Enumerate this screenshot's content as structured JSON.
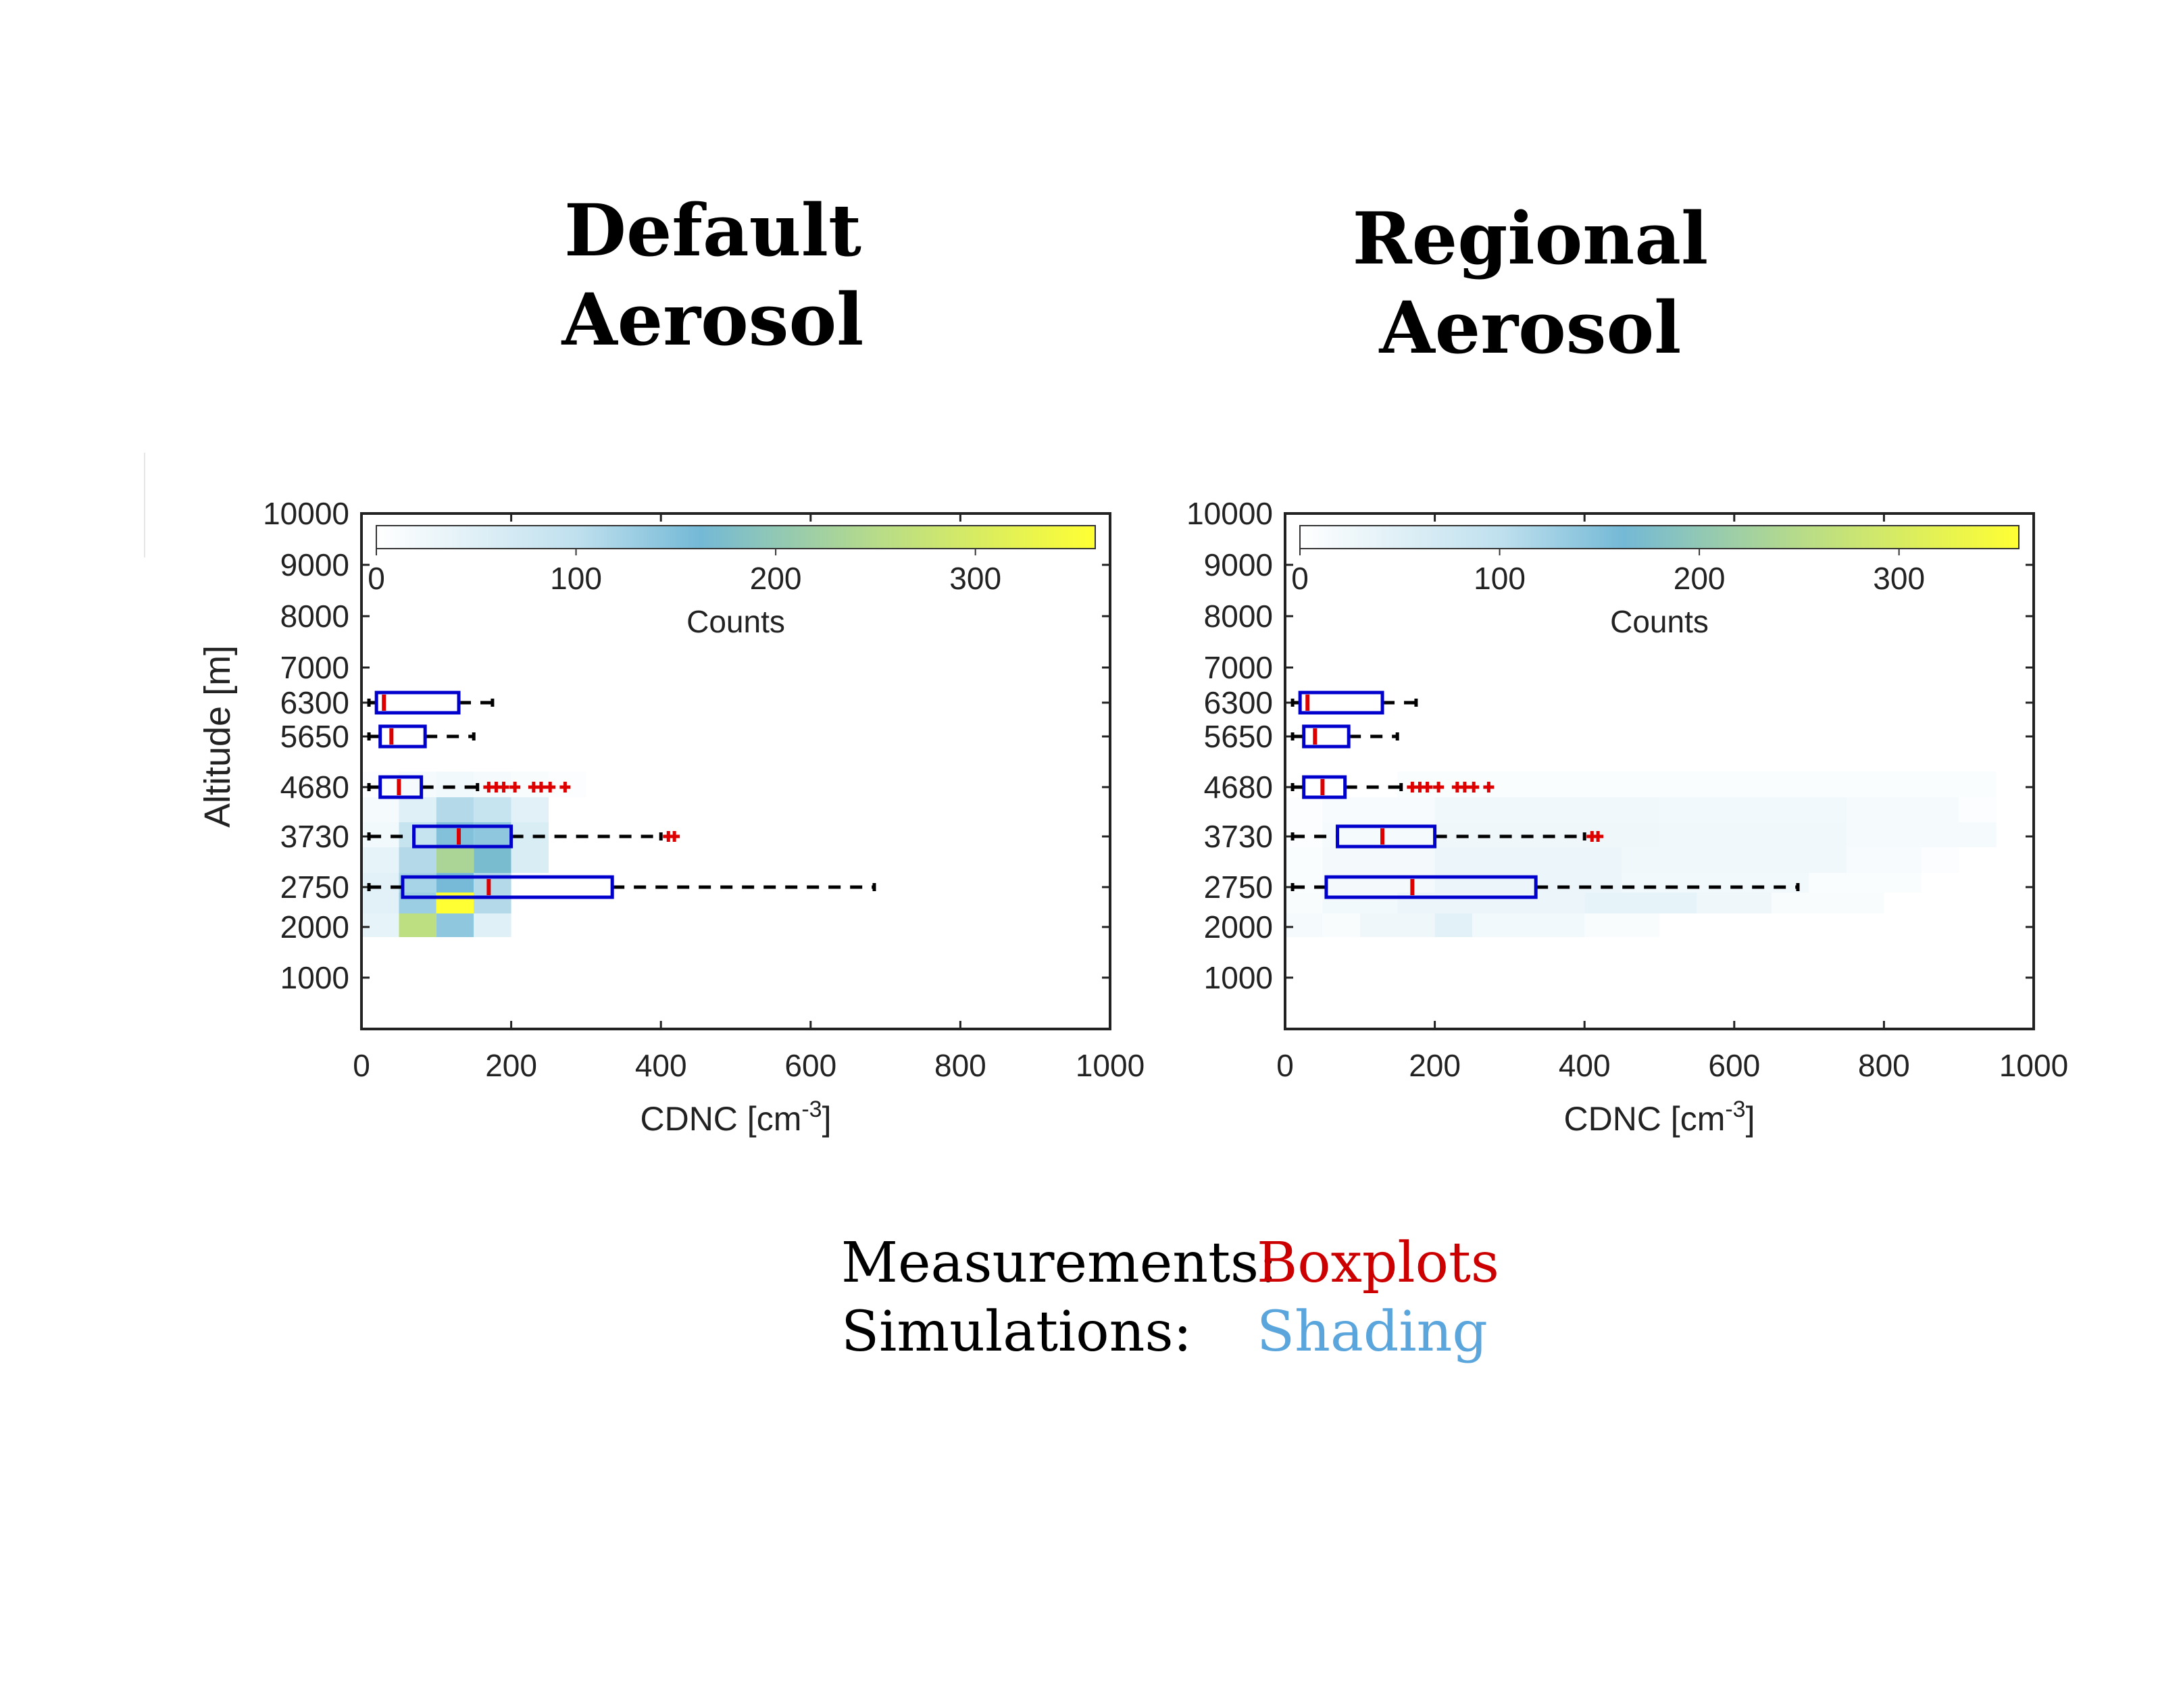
{
  "titles": {
    "left": "Default\nAerosol",
    "right": "Regional\nAerosol"
  },
  "legend_note": {
    "measurements_label": "Measurements:",
    "measurements_value": "Boxplots",
    "measurements_color": "#cc0000",
    "simulations_label": "Simulations:",
    "simulations_value": "Shading",
    "simulations_color": "#5aa5dc"
  },
  "colors": {
    "box": "#0000cc",
    "median": "#dd0000",
    "outlier": "#dd0000",
    "whisker": "#000000",
    "colormap": [
      "#ffffff",
      "#bfe0ee",
      "#74b9d6",
      "#b8dc88",
      "#ffff33"
    ]
  },
  "chart_data": [
    {
      "type": "heatmap",
      "panel": "Default Aerosol",
      "xlabel": "CDNC [cm",
      "xlabel_sup": "-3",
      "xlabel_end": "]",
      "ylabel": "Altitude [m]",
      "xlim": [
        0,
        1000
      ],
      "xticks": [
        "0",
        "200",
        "400",
        "600",
        "800",
        "1000"
      ],
      "yticks": [
        "10000",
        "9000",
        "8000",
        "7000",
        "6300",
        "5650",
        "4680",
        "3730",
        "2750",
        "2000",
        "1000"
      ],
      "colorbar": {
        "label": "Counts",
        "ticks": [
          "0",
          "100",
          "200",
          "300"
        ],
        "max": 360
      },
      "heatmap_cells": [
        {
          "x0": 0,
          "x1": 50,
          "y": "4680",
          "count": 5
        },
        {
          "x0": 50,
          "x1": 100,
          "y": "4680",
          "count": 15
        },
        {
          "x0": 100,
          "x1": 150,
          "y": "4680",
          "count": 20
        },
        {
          "x0": 150,
          "x1": 200,
          "y": "4680",
          "count": 15
        },
        {
          "x0": 200,
          "x1": 250,
          "y": "4680",
          "count": 10
        },
        {
          "x0": 250,
          "x1": 300,
          "y": "4680",
          "count": 5
        },
        {
          "x0": 0,
          "x1": 50,
          "y": "4200",
          "count": 15
        },
        {
          "x0": 50,
          "x1": 100,
          "y": "4200",
          "count": 50
        },
        {
          "x0": 100,
          "x1": 150,
          "y": "4200",
          "count": 110
        },
        {
          "x0": 150,
          "x1": 200,
          "y": "4200",
          "count": 90
        },
        {
          "x0": 200,
          "x1": 250,
          "y": "4200",
          "count": 45
        },
        {
          "x0": 0,
          "x1": 50,
          "y": "3730",
          "count": 20
        },
        {
          "x0": 50,
          "x1": 100,
          "y": "3730",
          "count": 90
        },
        {
          "x0": 100,
          "x1": 150,
          "y": "3730",
          "count": 150
        },
        {
          "x0": 150,
          "x1": 200,
          "y": "3730",
          "count": 140
        },
        {
          "x0": 200,
          "x1": 250,
          "y": "3730",
          "count": 60
        },
        {
          "x0": 0,
          "x1": 50,
          "y": "3240",
          "count": 40
        },
        {
          "x0": 50,
          "x1": 100,
          "y": "3240",
          "count": 110
        },
        {
          "x0": 100,
          "x1": 150,
          "y": "3240",
          "count": 235
        },
        {
          "x0": 150,
          "x1": 200,
          "y": "3240",
          "count": 170
        },
        {
          "x0": 200,
          "x1": 250,
          "y": "3240",
          "count": 60
        },
        {
          "x0": 0,
          "x1": 50,
          "y": "2750",
          "count": 45
        },
        {
          "x0": 50,
          "x1": 100,
          "y": "2750",
          "count": 120
        },
        {
          "x0": 100,
          "x1": 150,
          "y": "2750",
          "count": 160
        },
        {
          "x0": 150,
          "x1": 200,
          "y": "2750",
          "count": 110
        },
        {
          "x0": 0,
          "x1": 50,
          "y": "2375",
          "count": 45
        },
        {
          "x0": 50,
          "x1": 100,
          "y": "2375",
          "count": 130
        },
        {
          "x0": 100,
          "x1": 150,
          "y": "2375",
          "count": 360
        },
        {
          "x0": 150,
          "x1": 200,
          "y": "2375",
          "count": 110
        },
        {
          "x0": 0,
          "x1": 50,
          "y": "2000",
          "count": 40
        },
        {
          "x0": 50,
          "x1": 100,
          "y": "2000",
          "count": 260
        },
        {
          "x0": 100,
          "x1": 150,
          "y": "2000",
          "count": 140
        },
        {
          "x0": 150,
          "x1": 200,
          "y": "2000",
          "count": 50
        }
      ],
      "boxplots": [
        {
          "y": "6300",
          "whisker_low": 10,
          "q1": 20,
          "median": 30,
          "q3": 130,
          "whisker_high": 175,
          "outliers": []
        },
        {
          "y": "5650",
          "whisker_low": 10,
          "q1": 25,
          "median": 40,
          "q3": 85,
          "whisker_high": 150,
          "outliers": []
        },
        {
          "y": "4680",
          "whisker_low": 10,
          "q1": 25,
          "median": 50,
          "q3": 80,
          "whisker_high": 155,
          "outliers": [
            170,
            180,
            190,
            205,
            230,
            240,
            252,
            272
          ]
        },
        {
          "y": "3730",
          "whisker_low": 10,
          "q1": 70,
          "median": 130,
          "q3": 200,
          "whisker_high": 400,
          "outliers": [
            410,
            418
          ]
        },
        {
          "y": "2750",
          "whisker_low": 10,
          "q1": 55,
          "median": 170,
          "q3": 335,
          "whisker_high": 685,
          "outliers": []
        }
      ]
    },
    {
      "type": "heatmap",
      "panel": "Regional Aerosol",
      "xlabel": "CDNC [cm",
      "xlabel_sup": "-3",
      "xlabel_end": "]",
      "ylabel": "",
      "xlim": [
        0,
        1000
      ],
      "xticks": [
        "0",
        "200",
        "400",
        "600",
        "800",
        "1000"
      ],
      "yticks": [
        "10000",
        "9000",
        "8000",
        "7000",
        "6300",
        "5650",
        "4680",
        "3730",
        "2750",
        "2000",
        "1000"
      ],
      "colorbar": {
        "label": "Counts",
        "ticks": [
          "0",
          "100",
          "200",
          "300"
        ],
        "max": 360
      },
      "heatmap_cells": [
        {
          "x0": 150,
          "x1": 500,
          "y": "4680",
          "count": 8
        },
        {
          "x0": 500,
          "x1": 950,
          "y": "4680",
          "count": 8
        },
        {
          "x0": 0,
          "x1": 50,
          "y": "4200",
          "count": 5
        },
        {
          "x0": 50,
          "x1": 200,
          "y": "4200",
          "count": 12
        },
        {
          "x0": 200,
          "x1": 500,
          "y": "4200",
          "count": 22
        },
        {
          "x0": 500,
          "x1": 750,
          "y": "4200",
          "count": 20
        },
        {
          "x0": 750,
          "x1": 900,
          "y": "4200",
          "count": 15
        },
        {
          "x0": 900,
          "x1": 950,
          "y": "4200",
          "count": 6
        },
        {
          "x0": 0,
          "x1": 50,
          "y": "3730",
          "count": 6
        },
        {
          "x0": 50,
          "x1": 200,
          "y": "3730",
          "count": 15
        },
        {
          "x0": 200,
          "x1": 500,
          "y": "3730",
          "count": 25
        },
        {
          "x0": 500,
          "x1": 750,
          "y": "3730",
          "count": 22
        },
        {
          "x0": 750,
          "x1": 950,
          "y": "3730",
          "count": 15
        },
        {
          "x0": 0,
          "x1": 50,
          "y": "3240",
          "count": 8
        },
        {
          "x0": 50,
          "x1": 200,
          "y": "3240",
          "count": 18
        },
        {
          "x0": 200,
          "x1": 450,
          "y": "3240",
          "count": 30
        },
        {
          "x0": 450,
          "x1": 750,
          "y": "3240",
          "count": 22
        },
        {
          "x0": 750,
          "x1": 850,
          "y": "3240",
          "count": 12
        },
        {
          "x0": 850,
          "x1": 900,
          "y": "3240",
          "count": 6
        },
        {
          "x0": 0,
          "x1": 50,
          "y": "2750",
          "count": 8
        },
        {
          "x0": 50,
          "x1": 200,
          "y": "2750",
          "count": 18
        },
        {
          "x0": 200,
          "x1": 450,
          "y": "2750",
          "count": 30
        },
        {
          "x0": 450,
          "x1": 700,
          "y": "2750",
          "count": 20
        },
        {
          "x0": 700,
          "x1": 850,
          "y": "2750",
          "count": 8
        },
        {
          "x0": 0,
          "x1": 50,
          "y": "2375",
          "count": 10
        },
        {
          "x0": 50,
          "x1": 150,
          "y": "2375",
          "count": 20
        },
        {
          "x0": 150,
          "x1": 400,
          "y": "2375",
          "count": 30
        },
        {
          "x0": 400,
          "x1": 550,
          "y": "2375",
          "count": 40
        },
        {
          "x0": 550,
          "x1": 650,
          "y": "2375",
          "count": 25
        },
        {
          "x0": 650,
          "x1": 800,
          "y": "2375",
          "count": 10
        },
        {
          "x0": 0,
          "x1": 50,
          "y": "2000",
          "count": 15
        },
        {
          "x0": 50,
          "x1": 100,
          "y": "2000",
          "count": 10
        },
        {
          "x0": 100,
          "x1": 200,
          "y": "2000",
          "count": 25
        },
        {
          "x0": 200,
          "x1": 250,
          "y": "2000",
          "count": 45
        },
        {
          "x0": 250,
          "x1": 400,
          "y": "2000",
          "count": 20
        },
        {
          "x0": 400,
          "x1": 500,
          "y": "2000",
          "count": 10
        }
      ],
      "boxplots": [
        {
          "y": "6300",
          "whisker_low": 10,
          "q1": 20,
          "median": 30,
          "q3": 130,
          "whisker_high": 175,
          "outliers": []
        },
        {
          "y": "5650",
          "whisker_low": 10,
          "q1": 25,
          "median": 40,
          "q3": 85,
          "whisker_high": 150,
          "outliers": []
        },
        {
          "y": "4680",
          "whisker_low": 10,
          "q1": 25,
          "median": 50,
          "q3": 80,
          "whisker_high": 155,
          "outliers": [
            170,
            180,
            190,
            205,
            230,
            240,
            252,
            272
          ]
        },
        {
          "y": "3730",
          "whisker_low": 10,
          "q1": 70,
          "median": 130,
          "q3": 200,
          "whisker_high": 400,
          "outliers": [
            410,
            418
          ]
        },
        {
          "y": "2750",
          "whisker_low": 10,
          "q1": 55,
          "median": 170,
          "q3": 335,
          "whisker_high": 685,
          "outliers": []
        }
      ]
    }
  ]
}
